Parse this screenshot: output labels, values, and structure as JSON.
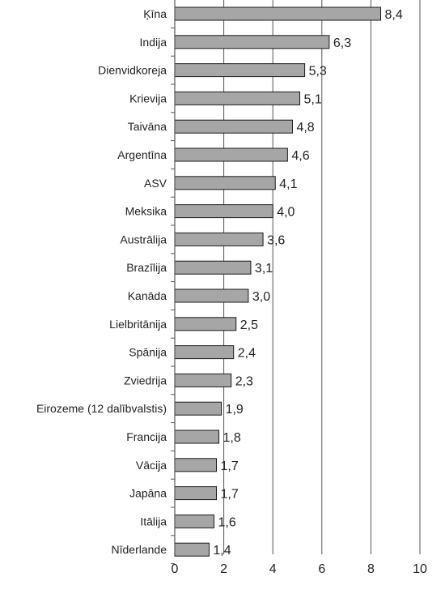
{
  "chart_data": {
    "type": "bar",
    "orientation": "horizontal",
    "categories": [
      "Ķīna",
      "Indija",
      "Dienvidkoreja",
      "Krievija",
      "Taivāna",
      "Argentīna",
      "ASV",
      "Meksika",
      "Austrālija",
      "Brazīlija",
      "Kanāda",
      "Lielbritānija",
      "Spānija",
      "Zviedrija",
      "Eirozeme (12 dalībvalstis)",
      "Francija",
      "Vācija",
      "Japāna",
      "Itālija",
      "Nīderlande"
    ],
    "values": [
      8.4,
      6.3,
      5.3,
      5.1,
      4.8,
      4.6,
      4.1,
      4.0,
      3.6,
      3.1,
      3.0,
      2.5,
      2.4,
      2.3,
      1.9,
      1.8,
      1.7,
      1.7,
      1.6,
      1.4
    ],
    "value_labels": [
      "8,4",
      "6,3",
      "5,3",
      "5,1",
      "4,8",
      "4,6",
      "4,1",
      "4,0",
      "3,6",
      "3,1",
      "3,0",
      "2,5",
      "2,4",
      "2,3",
      "1,9",
      "1,8",
      "1,7",
      "1,7",
      "1,6",
      "1,4"
    ],
    "x_ticks": [
      "0",
      "2",
      "4",
      "6",
      "8",
      "10"
    ],
    "xlim": [
      0,
      10
    ],
    "title": "",
    "xlabel": "",
    "ylabel": "",
    "grid": "vertical",
    "legend": "none",
    "colors": {
      "bar_fill": "#a6a6a6",
      "bar_stroke": "#1a1a1a",
      "gridline": "#555555",
      "text": "#222222"
    }
  }
}
